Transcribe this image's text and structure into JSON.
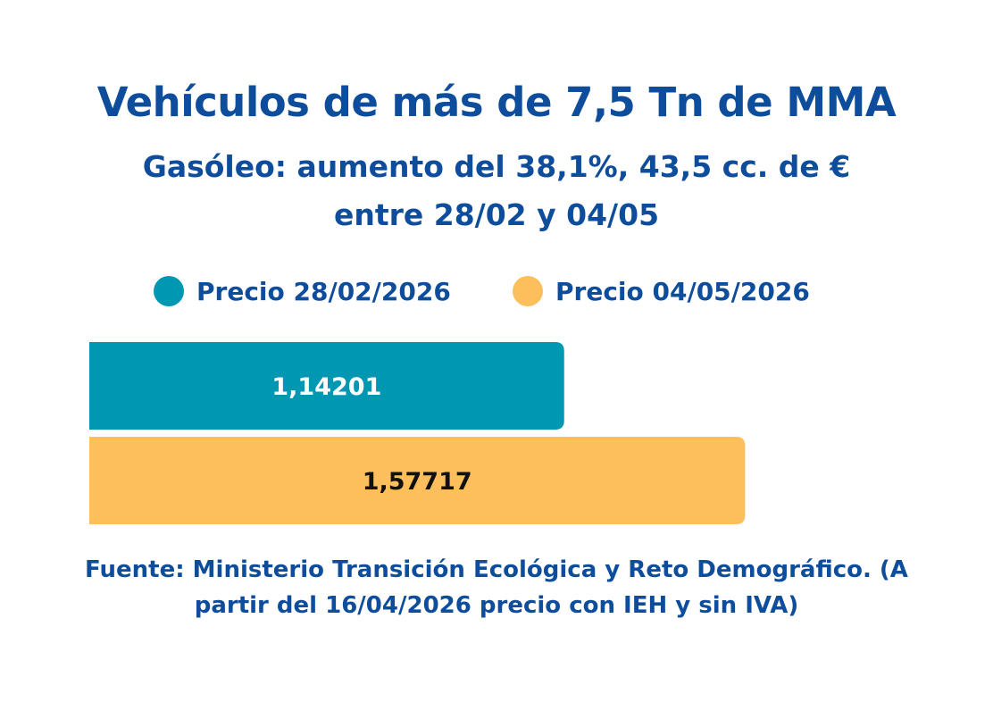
{
  "chart_data": {
    "type": "bar",
    "orientation": "horizontal",
    "title": "Vehículos de más de 7,5 Tn de MMA",
    "subtitle_lines": [
      "Gasóleo: aumento del 38,1%, 43,5 cc. de €",
      "entre 28/02 y 04/05"
    ],
    "series": [
      {
        "name": "Precio 28/02/2026",
        "value": 1.14201,
        "label": "1,14201",
        "color": "#0097b2",
        "label_color": "#ffffff"
      },
      {
        "name": "Precio 04/05/2026",
        "value": 1.57717,
        "label": "1,57717",
        "color": "#fdbe5c",
        "label_color": "#111111"
      }
    ],
    "xlim": [
      0,
      1.6
    ],
    "grid": false,
    "legend_position": "top",
    "source_lines": [
      "Fuente: Ministerio Transición Ecológica y Reto Demográfico. (A",
      "partir del 16/04/2026 precio con IEH y sin IVA)"
    ]
  }
}
